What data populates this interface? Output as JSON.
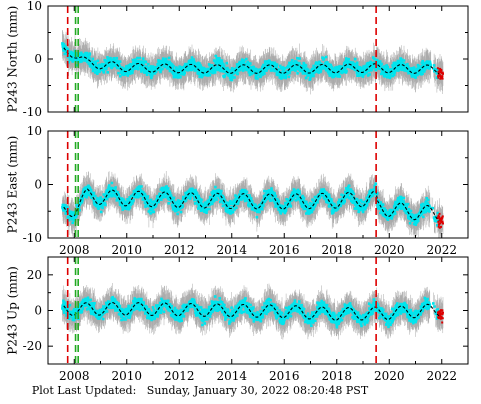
{
  "footer": {
    "label": "Plot Last Updated:",
    "datetime": "Sunday, January 30, 2022 08:20:48 PST"
  },
  "colors": {
    "errorbar": "#aaaaaa",
    "points": "#00e5ee",
    "recent_points": "#dd0000",
    "model": "#000000",
    "event_red": "#dd0000",
    "event_green": "#22aa22"
  },
  "chart_data": [
    {
      "type": "scatter",
      "ylabel": "P243 North (mm)",
      "ylim": [
        -10,
        10
      ],
      "yticks": [
        -10,
        0,
        10
      ],
      "xlim": [
        2007.0,
        2023.0
      ],
      "xticks": [
        2008,
        2010,
        2012,
        2014,
        2016,
        2018,
        2020,
        2022
      ],
      "show_xtick_labels": false,
      "series": [
        {
          "role": "model",
          "x": [
            2007.5,
            2008.0,
            2008.5,
            2010,
            2012,
            2014,
            2016,
            2018,
            2019.5,
            2020,
            2021,
            2022
          ],
          "y": [
            1.8,
            1.0,
            -0.8,
            -1.6,
            -1.8,
            -1.9,
            -1.9,
            -1.8,
            -1.7,
            -1.8,
            -1.9,
            -2.0
          ],
          "seasonal_amplitude": 0.8
        }
      ],
      "event_lines": [
        {
          "x": 2007.75,
          "color": "red"
        },
        {
          "x": 2008.05,
          "color": "green"
        },
        {
          "x": 2008.15,
          "color": "green"
        },
        {
          "x": 2019.5,
          "color": "red"
        }
      ]
    },
    {
      "type": "scatter",
      "ylabel": "P243 East (mm)",
      "ylim": [
        -10,
        10
      ],
      "yticks": [
        -10,
        0,
        10
      ],
      "xlim": [
        2007.0,
        2023.0
      ],
      "xticks": [
        2008,
        2010,
        2012,
        2014,
        2016,
        2018,
        2020,
        2022
      ],
      "show_xtick_labels": true,
      "series": [
        {
          "role": "model",
          "x": [
            2007.5,
            2008.0,
            2008.5,
            2010,
            2012,
            2014,
            2016,
            2018,
            2019.5,
            2019.55,
            2020,
            2021,
            2022
          ],
          "y": [
            -5.2,
            -4.5,
            -2.2,
            -2.6,
            -2.9,
            -3.1,
            -3.2,
            -3.0,
            -2.6,
            -4.2,
            -4.6,
            -5.2,
            -5.5
          ],
          "seasonal_amplitude": 1.4
        }
      ],
      "event_lines": [
        {
          "x": 2007.75,
          "color": "red"
        },
        {
          "x": 2008.05,
          "color": "green"
        },
        {
          "x": 2008.15,
          "color": "green"
        },
        {
          "x": 2019.5,
          "color": "red"
        }
      ]
    },
    {
      "type": "scatter",
      "ylabel": "P243 Up (mm)",
      "ylim": [
        -30,
        30
      ],
      "yticks": [
        -20,
        0,
        20
      ],
      "xlim": [
        2007.0,
        2023.0
      ],
      "xticks": [
        2008,
        2010,
        2012,
        2014,
        2016,
        2018,
        2020,
        2022
      ],
      "show_xtick_labels": true,
      "series": [
        {
          "role": "model",
          "x": [
            2007.5,
            2008.0,
            2010,
            2012,
            2014,
            2016,
            2018,
            2020,
            2022
          ],
          "y": [
            0.5,
            0.8,
            1.0,
            0.5,
            0.0,
            -0.5,
            -2.0,
            -1.5,
            0.5
          ],
          "seasonal_amplitude": 3.5
        }
      ],
      "event_lines": [
        {
          "x": 2007.75,
          "color": "red"
        },
        {
          "x": 2008.05,
          "color": "green"
        },
        {
          "x": 2008.15,
          "color": "green"
        },
        {
          "x": 2019.5,
          "color": "red"
        }
      ]
    }
  ]
}
